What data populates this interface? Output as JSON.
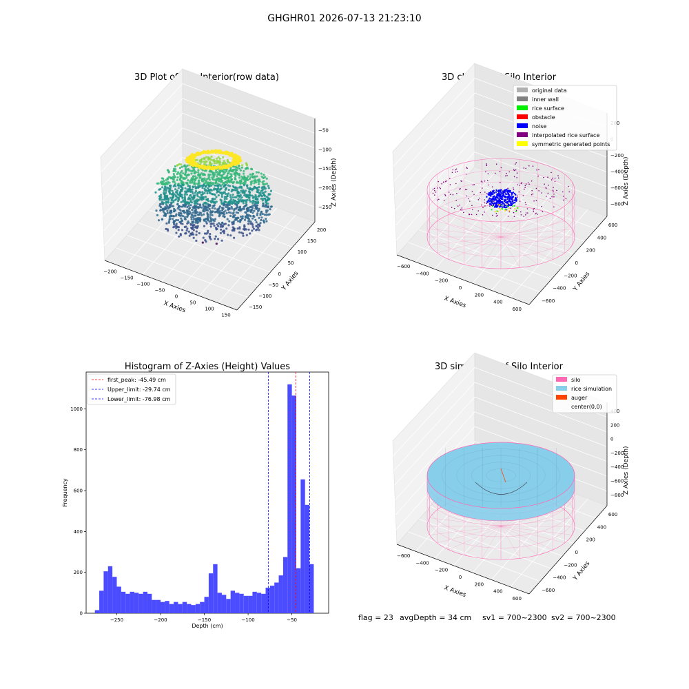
{
  "suptitle": "GHGHR01 2026-07-13 21:23:10",
  "footer": {
    "flag": "flag = 23",
    "avg_depth": "avgDepth = 34 cm",
    "sv1": "sv1 = 700~2300",
    "sv2": "sv2 = 700~2300"
  },
  "colors": {
    "hist_bar": "#4b4bff",
    "pink": "#ff69b4",
    "rice": "#87ceeb",
    "auger": "#ff4500",
    "viridis_dark": "#3b0f70",
    "viridis_yellow": "#fde725"
  },
  "chart_data": [
    {
      "id": "raw",
      "type": "scatter",
      "title": "3D Plot of Silo Interior(row data)",
      "xlabel": "X Axies",
      "ylabel": "Y Axies",
      "zlabel": "Z Axies (Depth)",
      "xticks": [
        "−200",
        "−150",
        "−100",
        "−50",
        "0",
        "50",
        "100",
        "150"
      ],
      "yticks": [
        "−150",
        "−100",
        "−50",
        "0",
        "50",
        "100",
        "150",
        "200"
      ],
      "zticks": [
        "−50",
        "−100",
        "−150",
        "−200",
        "−250"
      ],
      "colormap": "viridis"
    },
    {
      "id": "classify",
      "type": "scatter",
      "title": "3D classify of Silo Interior",
      "xlabel": "X Axies",
      "ylabel": "Y Axies",
      "zlabel": "Z Axies (Depth)",
      "xticks": [
        "−600",
        "−400",
        "−200",
        "0",
        "200",
        "400",
        "600"
      ],
      "yticks": [
        "−600",
        "−400",
        "−200",
        "0",
        "200",
        "400",
        "600"
      ],
      "zticks": [
        "200",
        "0",
        "−200",
        "−400",
        "−600",
        "−800"
      ],
      "legend": [
        {
          "label": "original data",
          "color": "#b0b0b0"
        },
        {
          "label": "inner wall",
          "color": "#808080"
        },
        {
          "label": "rice surface",
          "color": "#00ee00"
        },
        {
          "label": "obstacle",
          "color": "#ff0000"
        },
        {
          "label": "noise",
          "color": "#0000ff"
        },
        {
          "label": "interpolated rice surface",
          "color": "#800080"
        },
        {
          "label": "symmetric generated points",
          "color": "#ffff00"
        }
      ],
      "legend_position": "top-right"
    },
    {
      "id": "histogram",
      "type": "bar",
      "title": "Histogram of Z-Axies (Height) Values",
      "xlabel": "Depth (cm)",
      "ylabel": "Frequency",
      "xlim": [
        -285,
        -8
      ],
      "ylim": [
        0,
        1180
      ],
      "xticks": [
        -250,
        -200,
        -150,
        -100,
        -50
      ],
      "yticks": [
        0,
        200,
        400,
        600,
        800,
        1000
      ],
      "bin_start": -275,
      "bin_width": 5,
      "values": [
        15,
        110,
        205,
        230,
        178,
        130,
        105,
        95,
        105,
        100,
        95,
        105,
        95,
        65,
        65,
        55,
        60,
        45,
        55,
        45,
        55,
        45,
        40,
        45,
        55,
        80,
        195,
        240,
        100,
        90,
        70,
        110,
        100,
        95,
        85,
        85,
        105,
        100,
        95,
        125,
        135,
        150,
        185,
        275,
        1120,
        1065,
        220,
        655,
        530,
        240
      ],
      "vlines": [
        {
          "label": "first_peak: -45.49 cm",
          "x": -45.49,
          "color": "#ff0000",
          "style": "dashed"
        },
        {
          "label": "Upper_limit: -29.74 cm",
          "x": -29.74,
          "color": "#0000ff",
          "style": "dashed"
        },
        {
          "label": "Lower_limit: -76.98 cm",
          "x": -76.98,
          "color": "#0000ff",
          "style": "dashed"
        }
      ],
      "legend_position": "top-left"
    },
    {
      "id": "simulation",
      "type": "area",
      "title": "3D simulation of Silo Interior",
      "xlabel": "X Axies",
      "ylabel": "Y Axies",
      "zlabel": "Z Axies (Depth)",
      "xticks": [
        "−600",
        "−400",
        "−200",
        "0",
        "200",
        "400",
        "600"
      ],
      "yticks": [
        "−600",
        "−400",
        "−200",
        "0",
        "200",
        "400",
        "600"
      ],
      "zticks": [
        "400",
        "200",
        "0",
        "−200",
        "−400",
        "−600",
        "−800"
      ],
      "legend": [
        {
          "label": "silo",
          "color": "#ff69b4"
        },
        {
          "label": "rice simulation",
          "color": "#87ceeb"
        },
        {
          "label": "auger",
          "color": "#ff4500"
        },
        {
          "label": "center(0,0)",
          "color": ""
        }
      ],
      "legend_position": "top-right"
    }
  ]
}
